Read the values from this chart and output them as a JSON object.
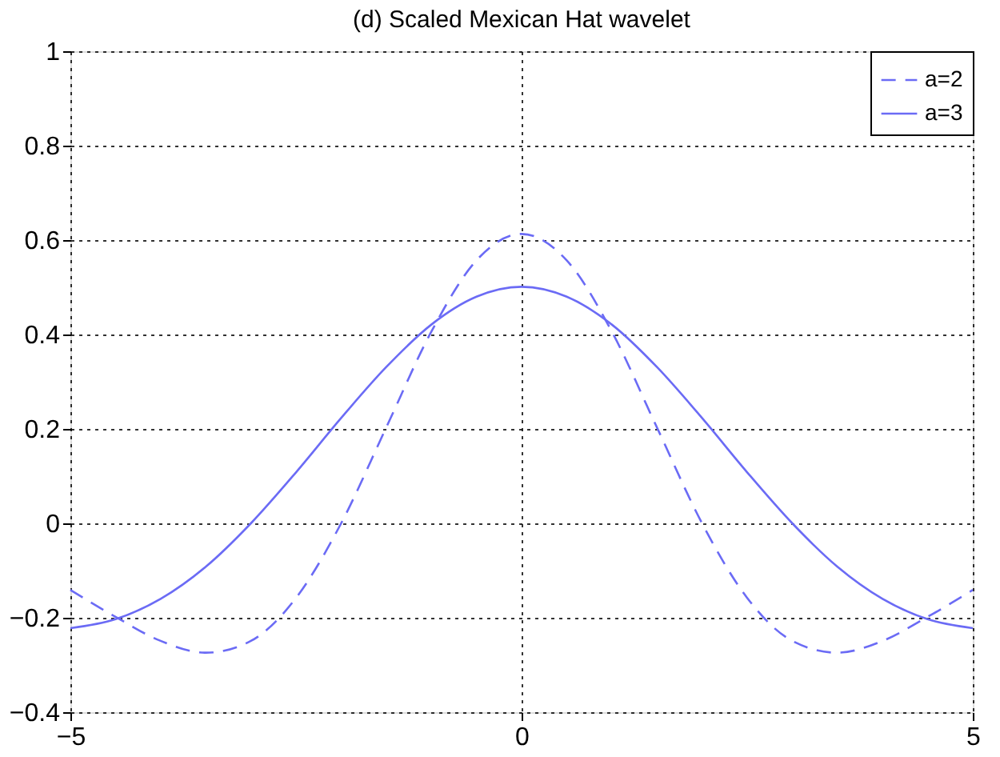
{
  "chart_data": {
    "type": "line",
    "title": "(d) Scaled Mexican Hat wavelet",
    "x": [
      -5,
      -4.5,
      -4,
      -3.5,
      -3,
      -2.5,
      -2,
      -1.5,
      -1,
      -0.5,
      0,
      0.5,
      1,
      1.5,
      2,
      2.5,
      3,
      3.5,
      4,
      4.5,
      5
    ],
    "series": [
      {
        "name": "a=2",
        "color": "#6b6bf5",
        "line_style": "dashed",
        "values": [
          -0.141,
          -0.198,
          -0.249,
          -0.274,
          -0.249,
          -0.158,
          0,
          0.203,
          0.406,
          0.557,
          0.613,
          0.557,
          0.406,
          0.203,
          0,
          -0.158,
          -0.249,
          -0.274,
          -0.249,
          -0.198,
          -0.141
        ]
      },
      {
        "name": "a=3",
        "color": "#6b6bf5",
        "line_style": "solid",
        "values": [
          -0.222,
          -0.203,
          -0.16,
          -0.092,
          0,
          0.108,
          0.223,
          0.331,
          0.421,
          0.48,
          0.501,
          0.48,
          0.421,
          0.331,
          0.223,
          0.108,
          0,
          -0.092,
          -0.16,
          -0.203,
          -0.222
        ]
      }
    ],
    "xlim": [
      -5,
      5
    ],
    "xticks": [
      -5,
      0,
      5
    ],
    "ylim": [
      -0.4,
      1
    ],
    "yticks": [
      -0.4,
      -0.2,
      0,
      0.2,
      0.4,
      0.6,
      0.8,
      1
    ],
    "grid": true,
    "legend": "top right",
    "marker": "none"
  }
}
